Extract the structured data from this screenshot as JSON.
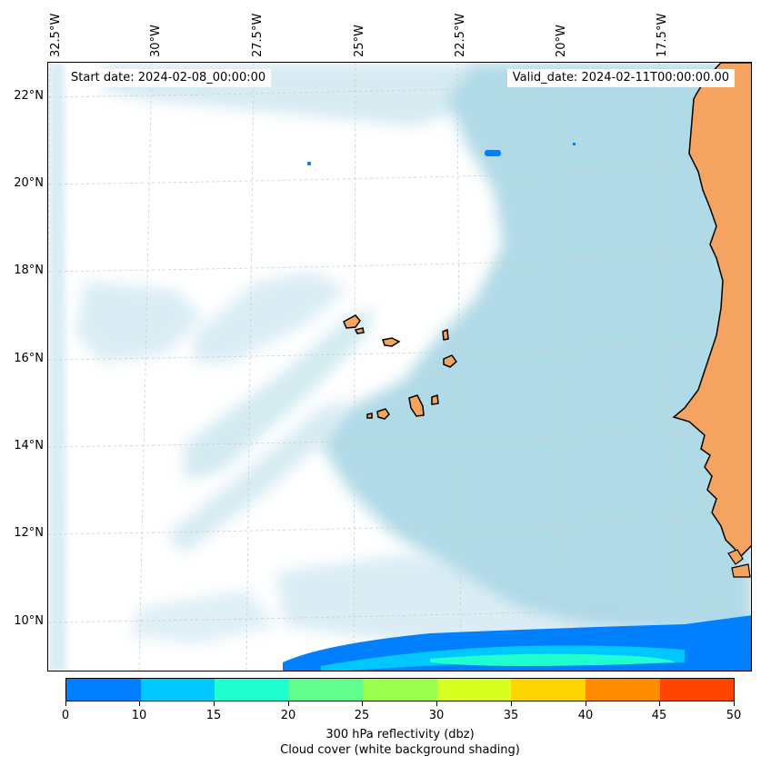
{
  "map": {
    "start_label": "Start date: 2024-02-08_00:00:00",
    "valid_label": "Valid_date: 2024-02-11T00:00:00.00",
    "longitude_labels": [
      "32.5°W",
      "30°W",
      "27.5°W",
      "25°W",
      "22.5°W",
      "20°W",
      "17.5°W"
    ],
    "latitude_labels": [
      "22°N",
      "20°N",
      "18°N",
      "16°N",
      "14°N",
      "12°N",
      "10°N"
    ],
    "land_color": "#f4a460",
    "cloud_color": "#add8e6",
    "ocean_color": "#ffffff"
  },
  "colorbar": {
    "label": "300 hPa reflectivity (dbz)",
    "sublabel": "Cloud cover (white background shading)",
    "ticks": [
      "0",
      "10",
      "15",
      "20",
      "25",
      "30",
      "35",
      "40",
      "45",
      "50"
    ],
    "colors": [
      "#0080ff",
      "#00c8ff",
      "#20ffd0",
      "#60ff90",
      "#9cff50",
      "#d8ff20",
      "#ffd700",
      "#ff8c00",
      "#ff4500"
    ]
  }
}
